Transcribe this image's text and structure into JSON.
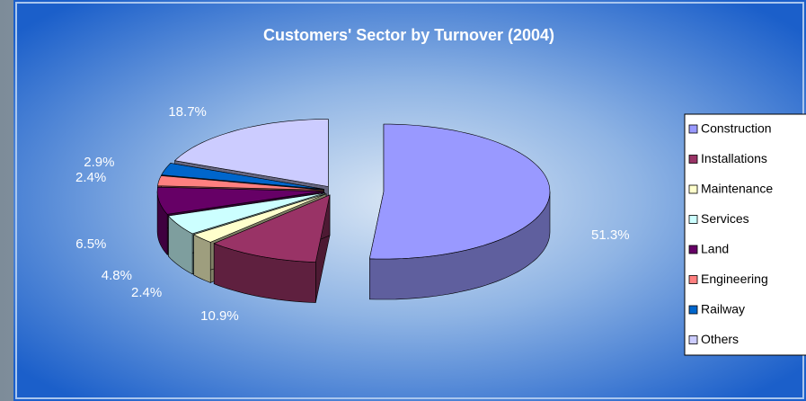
{
  "chart_data": {
    "type": "pie",
    "title": "Customers' Sector by Turnover (2004)",
    "categories": [
      "Construction",
      "Installations",
      "Maintenance",
      "Services",
      "Land",
      "Engineering",
      "Railway",
      "Others"
    ],
    "values": [
      51.3,
      10.9,
      2.4,
      4.8,
      6.5,
      2.4,
      2.9,
      18.7
    ],
    "value_labels": [
      "51.3%",
      "10.9%",
      "2.4%",
      "4.8%",
      "6.5%",
      "2.4%",
      "2.9%",
      "18.7%"
    ],
    "colors": [
      "#9999ff",
      "#993366",
      "#ffffcc",
      "#ccffff",
      "#660066",
      "#ff8080",
      "#0066cc",
      "#ccccff"
    ],
    "legend": "right"
  }
}
